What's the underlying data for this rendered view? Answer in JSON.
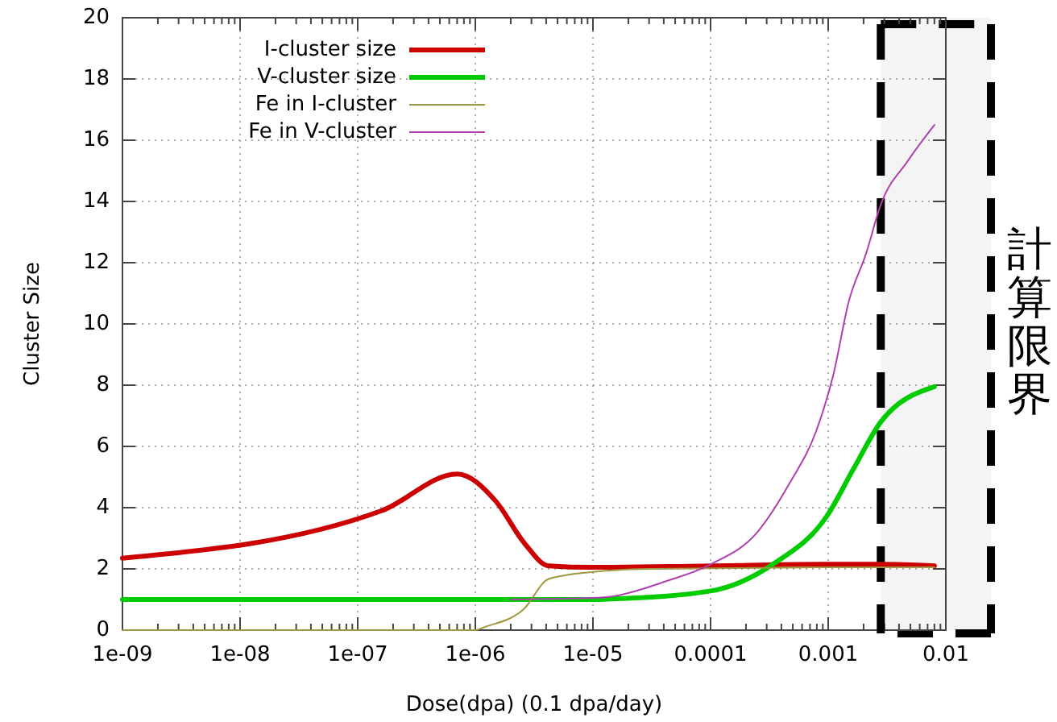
{
  "chart_data": {
    "type": "line",
    "xlabel": "Dose(dpa)  (0.1 dpa/day)",
    "ylabel": "Cluster Size",
    "log": "x",
    "grid": true,
    "legend": "top left",
    "xlim": [
      1e-09,
      0.01
    ],
    "ylim": [
      0,
      20
    ],
    "yticks": [
      0,
      2,
      4,
      6,
      8,
      10,
      12,
      14,
      16,
      18,
      20
    ],
    "xticks": [
      {
        "value": 1e-09,
        "label": "1e-09"
      },
      {
        "value": 2e-09,
        "label": null
      },
      {
        "value": 3e-09,
        "label": null
      },
      {
        "value": 4e-09,
        "label": null
      },
      {
        "value": 5e-09,
        "label": null
      },
      {
        "value": 6e-09,
        "label": null
      },
      {
        "value": 7e-09,
        "label": null
      },
      {
        "value": 8e-09,
        "label": null
      },
      {
        "value": 9e-09,
        "label": null
      },
      {
        "value": 1e-08,
        "label": "1e-08"
      },
      {
        "value": 2e-08,
        "label": null
      },
      {
        "value": 3e-08,
        "label": null
      },
      {
        "value": 4e-08,
        "label": null
      },
      {
        "value": 5e-08,
        "label": null
      },
      {
        "value": 6e-08,
        "label": null
      },
      {
        "value": 7e-08,
        "label": null
      },
      {
        "value": 8e-08,
        "label": null
      },
      {
        "value": 9e-08,
        "label": null
      },
      {
        "value": 1e-07,
        "label": "1e-07"
      },
      {
        "value": 2e-07,
        "label": null
      },
      {
        "value": 3e-07,
        "label": null
      },
      {
        "value": 4e-07,
        "label": null
      },
      {
        "value": 5e-07,
        "label": null
      },
      {
        "value": 6e-07,
        "label": null
      },
      {
        "value": 7e-07,
        "label": null
      },
      {
        "value": 8e-07,
        "label": null
      },
      {
        "value": 9e-07,
        "label": null
      },
      {
        "value": 1e-06,
        "label": "1e-06"
      },
      {
        "value": 2e-06,
        "label": null
      },
      {
        "value": 3e-06,
        "label": null
      },
      {
        "value": 4e-06,
        "label": null
      },
      {
        "value": 5e-06,
        "label": null
      },
      {
        "value": 6e-06,
        "label": null
      },
      {
        "value": 7e-06,
        "label": null
      },
      {
        "value": 8e-06,
        "label": null
      },
      {
        "value": 9e-06,
        "label": null
      },
      {
        "value": 1e-05,
        "label": "1e-05"
      },
      {
        "value": 2e-05,
        "label": null
      },
      {
        "value": 3e-05,
        "label": null
      },
      {
        "value": 4e-05,
        "label": null
      },
      {
        "value": 5e-05,
        "label": null
      },
      {
        "value": 6e-05,
        "label": null
      },
      {
        "value": 7e-05,
        "label": null
      },
      {
        "value": 8e-05,
        "label": null
      },
      {
        "value": 9e-05,
        "label": null
      },
      {
        "value": 0.0001,
        "label": "0.0001"
      },
      {
        "value": 0.0002,
        "label": null
      },
      {
        "value": 0.0003,
        "label": null
      },
      {
        "value": 0.0004,
        "label": null
      },
      {
        "value": 0.0005,
        "label": null
      },
      {
        "value": 0.0006,
        "label": null
      },
      {
        "value": 0.0007,
        "label": null
      },
      {
        "value": 0.0008,
        "label": null
      },
      {
        "value": 0.0009,
        "label": null
      },
      {
        "value": 0.001,
        "label": "0.001"
      },
      {
        "value": 0.002,
        "label": null
      },
      {
        "value": 0.003,
        "label": null
      },
      {
        "value": 0.004,
        "label": null
      },
      {
        "value": 0.005,
        "label": null
      },
      {
        "value": 0.006,
        "label": null
      },
      {
        "value": 0.007,
        "label": null
      },
      {
        "value": 0.008,
        "label": null
      },
      {
        "value": 0.009,
        "label": null
      },
      {
        "value": 0.01,
        "label": "0.01"
      }
    ],
    "ref_lines": [
      {
        "axis": "x",
        "value": 0.0028,
        "color": "#000000",
        "line_style": "dashed"
      }
    ],
    "bands": [
      {
        "axis": "x",
        "from": 0.0028,
        "to": 0.01,
        "label": "計算限界",
        "color": "#f4f4f4"
      }
    ],
    "series": [
      {
        "name": "I-cluster size",
        "color": "#cc0000",
        "x": [
          1e-09,
          1.6e-07,
          7e-07,
          1.5e-06,
          2.6e-06,
          4.2e-06,
          1e-05,
          0.0001,
          0.001,
          0.0028,
          0.008
        ],
        "values": [
          2.35,
          3.9,
          5.1,
          4.2,
          2.85,
          2.1,
          2.05,
          2.1,
          2.15,
          2.15,
          2.1
        ]
      },
      {
        "name": "V-cluster size",
        "color": "#00cc00",
        "x": [
          1e-09,
          1e-05,
          1.45e-05,
          0.0001,
          0.00034,
          0.00098,
          0.00166,
          0.0028,
          0.008
        ],
        "values": [
          1.0,
          1.0,
          1.02,
          1.28,
          2.16,
          3.74,
          5.3,
          6.8,
          7.95
        ]
      },
      {
        "name": "Fe in I-cluster",
        "color": "#a09840",
        "x": [
          1e-09,
          1e-06,
          1.2e-06,
          2.6e-06,
          4.2e-06,
          1e-05,
          3e-05,
          0.001,
          0.008
        ],
        "values": [
          0,
          0,
          0.1,
          0.7,
          1.67,
          1.9,
          2.0,
          2.05,
          2.05
        ]
      },
      {
        "name": "Fe in V-cluster",
        "color": "#b040b0",
        "x": [
          2e-06,
          1e-05,
          1.45e-05,
          4.2e-05,
          0.0001,
          0.00025,
          0.00047,
          0.00079,
          0.0011,
          0.0015,
          0.0021,
          0.0028,
          0.0047,
          0.008
        ],
        "values": [
          1.0,
          1.05,
          1.1,
          1.6,
          2.15,
          3.2,
          4.8,
          6.5,
          8.3,
          10.75,
          12.3,
          13.9,
          15.3,
          16.5
        ]
      }
    ]
  }
}
